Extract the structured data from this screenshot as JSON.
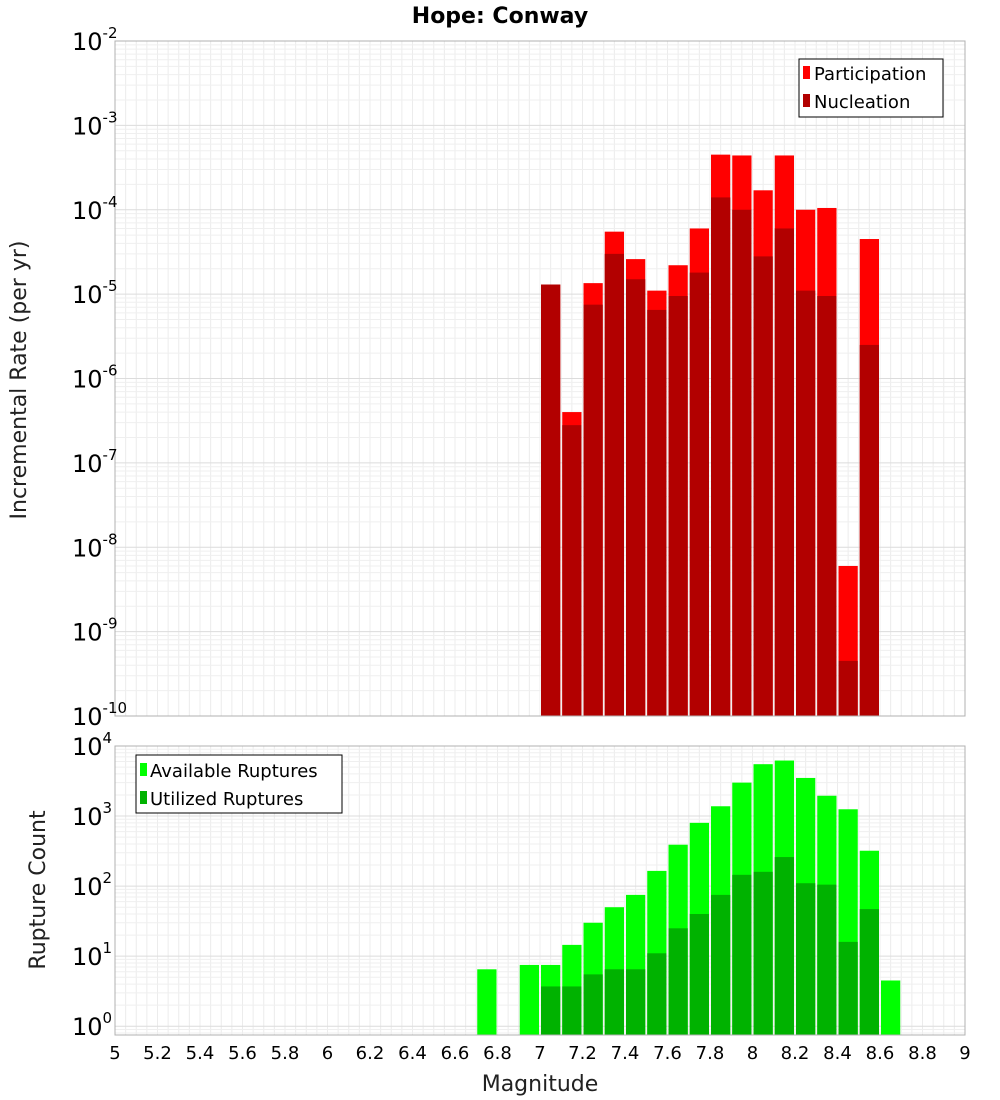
{
  "chart_data": [
    {
      "type": "bar",
      "title": "Hope: Conway",
      "xlabel": "",
      "ylabel": "Incremental Rate (per yr)",
      "yscale": "log",
      "xlim": [
        5,
        9
      ],
      "ylim": [
        1e-10,
        0.01
      ],
      "y_tick_exponents": [
        "-2",
        "-3",
        "-4",
        "-5",
        "-6",
        "-7",
        "-8",
        "-9",
        "-10"
      ],
      "grid": true,
      "legend_position": "top-right",
      "bin_width": 0.1,
      "x": [
        7.05,
        7.15,
        7.25,
        7.35,
        7.45,
        7.55,
        7.65,
        7.75,
        7.85,
        7.95,
        8.05,
        8.15,
        8.25,
        8.35,
        8.45,
        8.55
      ],
      "series": [
        {
          "name": "Participation",
          "color": "#ff0000",
          "values": [
            1.3e-05,
            4e-07,
            1.35e-05,
            5.5e-05,
            2.6e-05,
            1.1e-05,
            2.2e-05,
            6e-05,
            0.00045,
            0.00044,
            0.00017,
            0.00044,
            0.0001,
            0.000105,
            6e-09,
            4.5e-05
          ]
        },
        {
          "name": "Nucleation",
          "color": "#b20000",
          "values": [
            1.3e-05,
            2.8e-07,
            7.5e-06,
            3e-05,
            1.5e-05,
            6.5e-06,
            9.5e-06,
            1.8e-05,
            0.00014,
            0.0001,
            2.8e-05,
            6e-05,
            1.1e-05,
            9.5e-06,
            4.5e-10,
            2.5e-06
          ]
        }
      ]
    },
    {
      "type": "bar",
      "title": "",
      "xlabel": "Magnitude",
      "ylabel": "Rupture Count",
      "yscale": "log",
      "xlim": [
        5,
        9
      ],
      "ylim": [
        0.75,
        10000
      ],
      "y_tick_exponents": [
        "4",
        "3",
        "2",
        "1",
        "0"
      ],
      "x_ticks": [
        "5",
        "5.2",
        "5.4",
        "5.6",
        "5.8",
        "6",
        "6.2",
        "6.4",
        "6.6",
        "6.8",
        "7",
        "7.2",
        "7.4",
        "7.6",
        "7.8",
        "8",
        "8.2",
        "8.4",
        "8.6",
        "8.8",
        "9"
      ],
      "grid": true,
      "legend_position": "top-left",
      "bin_width": 0.1,
      "x": [
        6.75,
        6.95,
        7.05,
        7.15,
        7.25,
        7.35,
        7.45,
        7.55,
        7.65,
        7.75,
        7.85,
        7.95,
        8.05,
        8.15,
        8.25,
        8.35,
        8.45,
        8.55,
        8.65
      ],
      "series": [
        {
          "name": "Available Ruptures",
          "color": "#00ff00",
          "values": [
            6.5,
            7.5,
            7.5,
            14.5,
            30,
            50,
            75,
            165,
            390,
            800,
            1380,
            3000,
            5500,
            6200,
            3500,
            1950,
            1250,
            320,
            4.5
          ]
        },
        {
          "name": "Utilized Ruptures",
          "color": "#00b200",
          "values": [
            0,
            0,
            3.7,
            3.7,
            5.5,
            6.5,
            6.5,
            11,
            25,
            40,
            75,
            145,
            160,
            260,
            110,
            105,
            16,
            47,
            0
          ]
        }
      ]
    }
  ]
}
